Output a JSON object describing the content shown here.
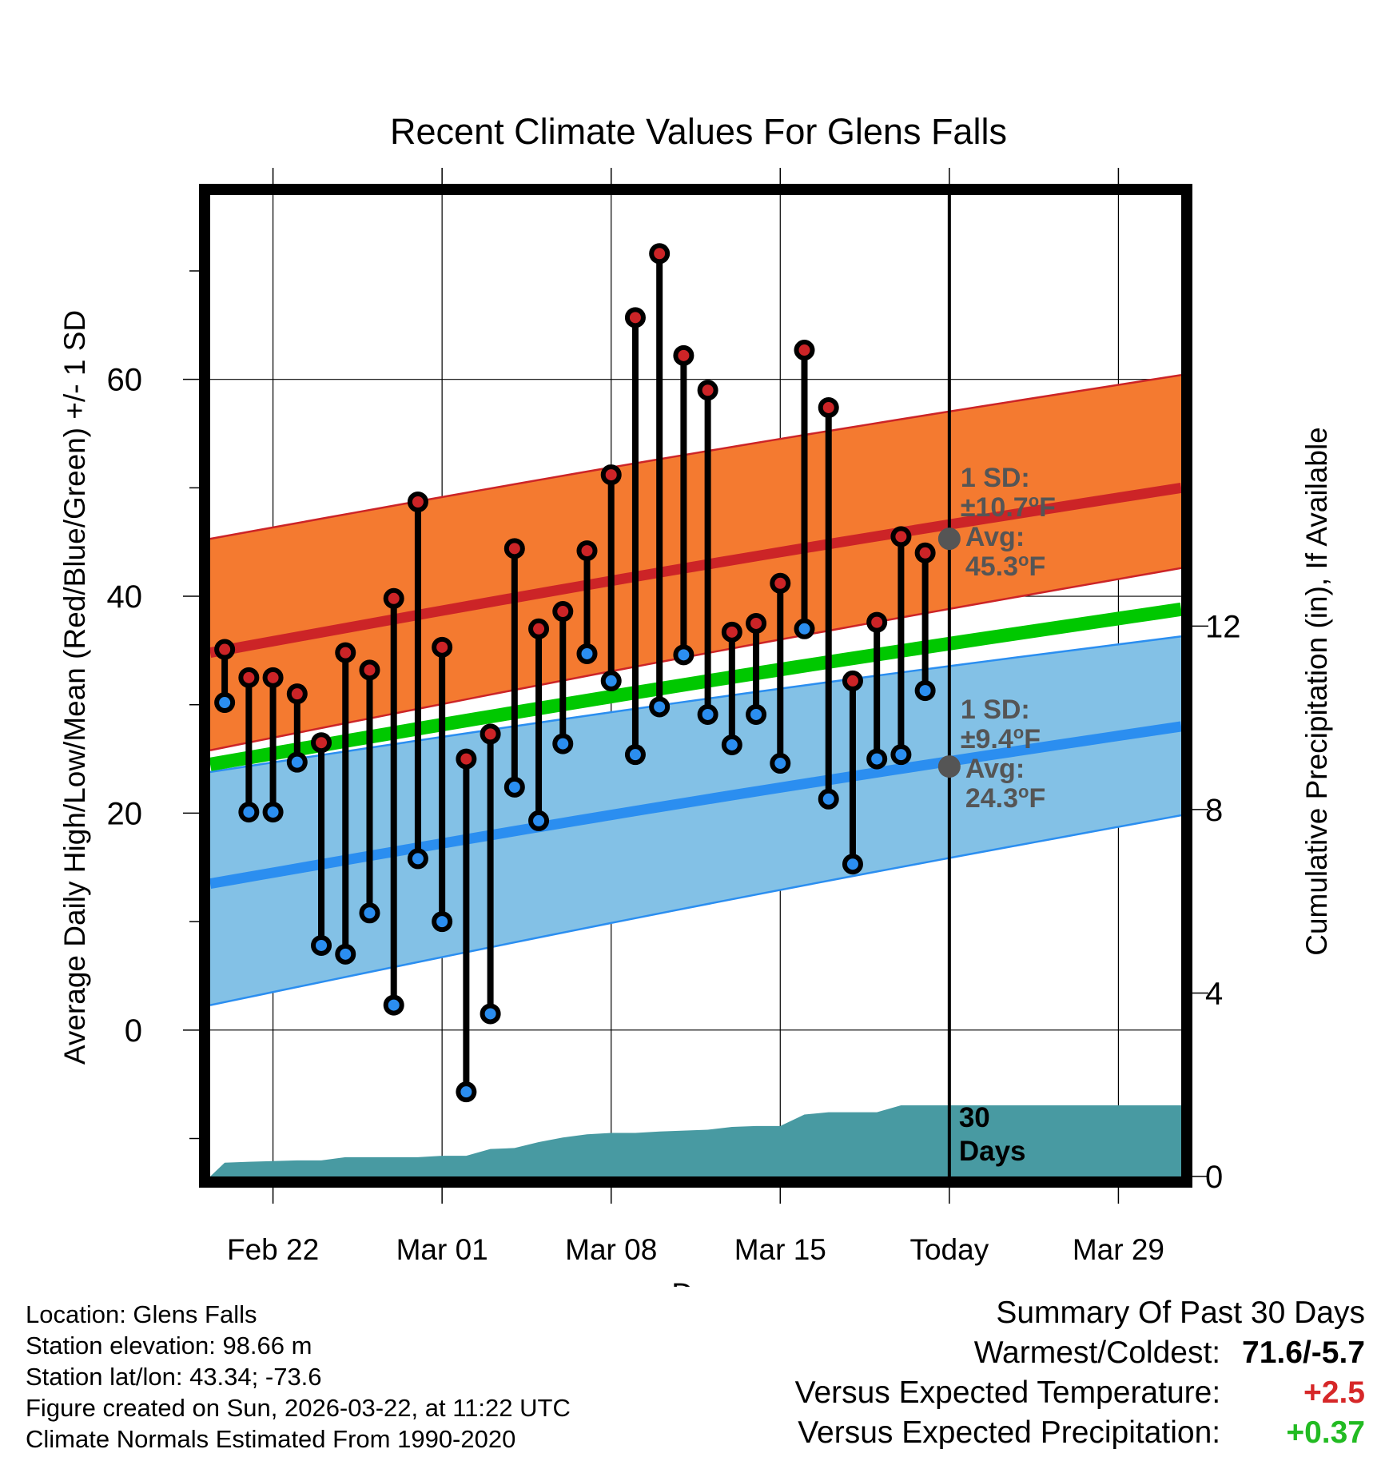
{
  "title": "Recent Climate Values For Glens Falls",
  "chart_data": {
    "type": "line",
    "title": "Recent Climate Values For Glens Falls",
    "xlabel": "Day",
    "ylabel": "Average Daily High/Low/Mean (Red/Blue/Green) +/- 1 SD",
    "y2label": "Cumulative Precipitation (in), If Available",
    "x_tick_labels": [
      "Feb 22",
      "Mar 01",
      "Mar 08",
      "Mar 15",
      "Today",
      "Mar 29"
    ],
    "x_ticks_day": [
      0,
      7,
      14,
      21,
      28,
      35
    ],
    "xlim_day": [
      -2.6,
      37.6
    ],
    "y_ticks": [
      0,
      20,
      40,
      60
    ],
    "ylim": [
      -13.5,
      77
    ],
    "y2_ticks": [
      0,
      4,
      8,
      12
    ],
    "y2lim": [
      0,
      21.4
    ],
    "highs": [
      35.1,
      32.5,
      32.5,
      31.0,
      26.5,
      34.8,
      33.2,
      39.8,
      48.7,
      35.3,
      25.0,
      27.3,
      44.4,
      37.0,
      38.6,
      44.2,
      51.2,
      65.7,
      71.6,
      62.2,
      59.0,
      36.7,
      37.5,
      41.2,
      62.7,
      57.4,
      32.2,
      37.6,
      45.5,
      44.0
    ],
    "lows": [
      30.2,
      20.1,
      20.1,
      24.7,
      7.8,
      7.0,
      10.8,
      2.3,
      15.8,
      10.0,
      -5.7,
      1.5,
      22.4,
      19.3,
      26.4,
      34.7,
      32.2,
      25.4,
      29.8,
      34.6,
      29.1,
      26.3,
      29.1,
      24.6,
      37.0,
      21.3,
      15.3,
      25.0,
      25.4,
      31.3
    ],
    "obs_days": [
      -2,
      -1,
      0,
      1,
      2,
      3,
      4,
      5,
      6,
      7,
      8,
      9,
      10,
      11,
      12,
      13,
      14,
      15,
      16,
      17,
      18,
      19,
      20,
      21,
      22,
      23,
      24,
      25,
      26,
      27
    ],
    "normal_days": [
      -2.6,
      37.6
    ],
    "normal_high_avg": [
      34.8,
      50.0
    ],
    "normal_high_upper": [
      45.3,
      60.4
    ],
    "normal_high_lower": [
      25.8,
      42.6
    ],
    "normal_low_avg": [
      13.5,
      28.0
    ],
    "normal_low_upper": [
      23.8,
      36.3
    ],
    "normal_low_lower": [
      2.3,
      19.8
    ],
    "normal_mean": [
      24.5,
      38.8
    ],
    "precip_days": [
      -2.6,
      -2,
      -1,
      1,
      2,
      3,
      4,
      5,
      6,
      7,
      8,
      9,
      10,
      11,
      12,
      13,
      14,
      15,
      16,
      17,
      18,
      19,
      20,
      21,
      22,
      23,
      24,
      25,
      26,
      27,
      37.6
    ],
    "precip_cum": [
      0.0,
      0.3,
      0.32,
      0.35,
      0.35,
      0.42,
      0.42,
      0.42,
      0.42,
      0.45,
      0.45,
      0.6,
      0.62,
      0.75,
      0.85,
      0.92,
      0.95,
      0.95,
      0.98,
      1.0,
      1.02,
      1.08,
      1.1,
      1.1,
      1.35,
      1.4,
      1.4,
      1.4,
      1.55,
      1.55,
      1.55
    ],
    "today_day": 28,
    "annotation_high": {
      "label": "1 SD:",
      "sd": "±10.7",
      "unit": "oF",
      "avg_label": "Avg:",
      "avg": "45.3",
      "value": 45.3
    },
    "annotation_low": {
      "label": "1 SD:",
      "sd": "±9.4",
      "unit": "oF",
      "avg_label": "Avg:",
      "avg": "24.3",
      "value": 24.3
    },
    "annotation_days": "30",
    "annotation_days_label": "Days"
  },
  "colors": {
    "high_band": "#f47a30",
    "high_line": "#cc2427",
    "low_band": "#83c1e6",
    "low_line": "#2b8ef0",
    "mean_line": "#00c800",
    "precip": "#489aa2",
    "high_dot": "#cc2427",
    "low_dot": "#2b8ef0",
    "annotation": "#555555",
    "positive": "#d62728",
    "precip_positive": "#22bb22"
  },
  "meta": {
    "location": "Location: Glens Falls",
    "elevation": "Station elevation: 98.66 m",
    "latlon": "Station lat/lon: 43.34; -73.6",
    "created": "Figure created on Sun, 2026-03-22, at 11:22 UTC",
    "normals": "Climate Normals Estimated From 1990-2020"
  },
  "summary": {
    "title": "Summary Of Past 30 Days",
    "extremes_label": "Warmest/Coldest:",
    "extremes_value": "71.6/-5.7",
    "temp_label": "Versus Expected Temperature:",
    "temp_value": "+2.5",
    "precip_label": "Versus Expected Precipitation:",
    "precip_value": "+0.37"
  }
}
